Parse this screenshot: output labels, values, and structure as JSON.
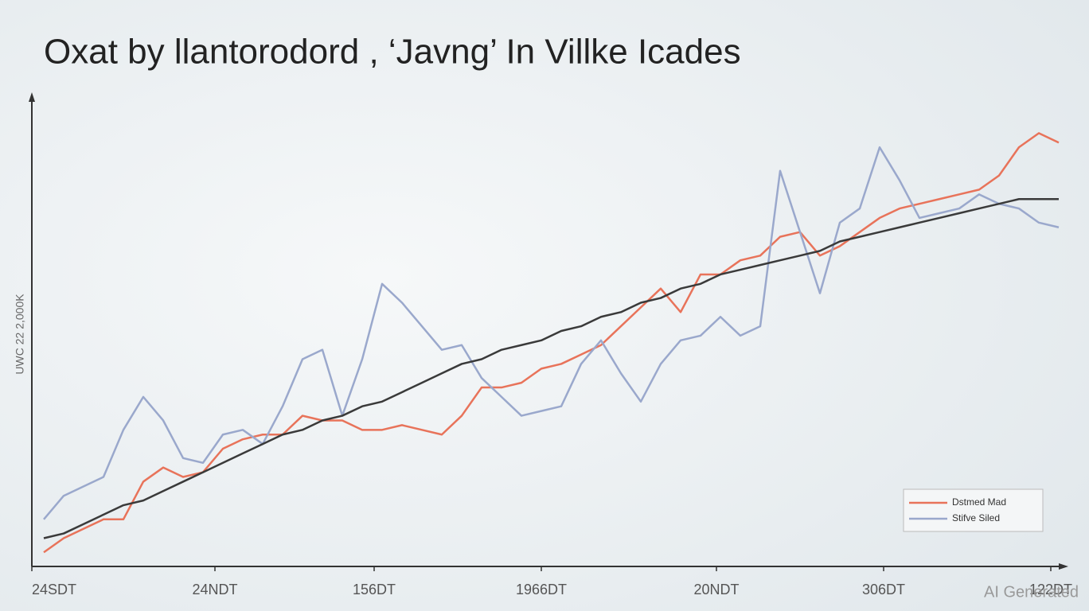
{
  "chart_data": {
    "type": "line",
    "title": "Oxat by llantorodord , ‘Javng’ In Villke Icades",
    "y_label": "UWC 22 2,000K",
    "watermark": "AI Generated",
    "legend": "bottom-right",
    "x": [
      0,
      1,
      2,
      3,
      4,
      5,
      6,
      7,
      8,
      9,
      10,
      11,
      12,
      13,
      14,
      15,
      16,
      17,
      18,
      19,
      20,
      21,
      22,
      23,
      24,
      25,
      26,
      27,
      28,
      29,
      30,
      31,
      32,
      33,
      34,
      35,
      36,
      37,
      38,
      39,
      40,
      41,
      42,
      43,
      44,
      45,
      46,
      47,
      48,
      49,
      50,
      51
    ],
    "xlim": [
      -0.6,
      51.2
    ],
    "xticks": [
      {
        "value": -0.6,
        "label": "24SDT"
      },
      {
        "value": 8.6,
        "label": "24NDT"
      },
      {
        "value": 16.6,
        "label": "156DT"
      },
      {
        "value": 25,
        "label": "1966DT"
      },
      {
        "value": 33.8,
        "label": "20NDT"
      },
      {
        "value": 42.2,
        "label": "306DT"
      },
      {
        "value": 50.6,
        "label": "122DT"
      }
    ],
    "ylim": [
      0,
      100
    ],
    "series": [
      {
        "name": "Dstmed Mad",
        "color": "#e8735a",
        "values": [
          3,
          6,
          8,
          10,
          10,
          18,
          21,
          19,
          20,
          25,
          27,
          28,
          28,
          32,
          31,
          31,
          29,
          29,
          30,
          29,
          28,
          32,
          38,
          38,
          39,
          42,
          43,
          45,
          47,
          51,
          55,
          59,
          54,
          62,
          62,
          65,
          66,
          70,
          71,
          66,
          68,
          71,
          74,
          76,
          77,
          78,
          79,
          80,
          83,
          89,
          92,
          90
        ]
      },
      {
        "name": "Stifve Siled",
        "color": "#9aa8cc",
        "values": [
          10,
          15,
          17,
          19,
          29,
          36,
          31,
          23,
          22,
          28,
          29,
          26,
          34,
          44,
          46,
          32,
          44,
          60,
          56,
          51,
          46,
          47,
          40,
          36,
          32,
          33,
          34,
          43,
          48,
          41,
          35,
          43,
          48,
          49,
          53,
          49,
          51,
          84,
          71,
          58,
          73,
          76,
          89,
          82,
          74,
          75,
          76,
          79,
          77,
          76,
          73,
          72
        ]
      },
      {
        "color": "#3a3a3a",
        "values": [
          6,
          7,
          9,
          11,
          13,
          14,
          16,
          18,
          20,
          22,
          24,
          26,
          28,
          29,
          31,
          32,
          34,
          35,
          37,
          39,
          41,
          43,
          44,
          46,
          47,
          48,
          50,
          51,
          53,
          54,
          56,
          57,
          59,
          60,
          62,
          63,
          64,
          65,
          66,
          67,
          69,
          70,
          71,
          72,
          73,
          74,
          75,
          76,
          77,
          78,
          78,
          78
        ]
      }
    ]
  }
}
